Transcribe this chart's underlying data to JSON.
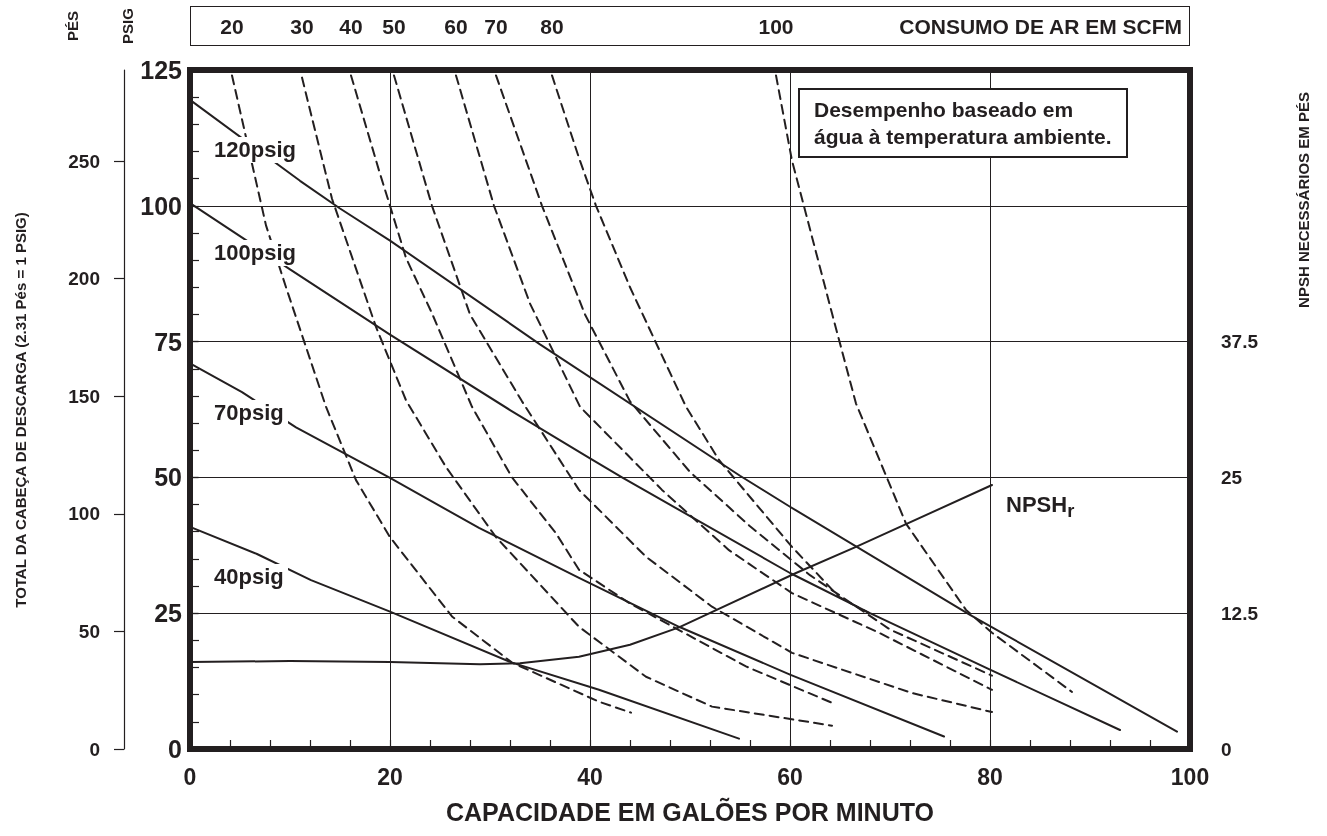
{
  "chart_data": {
    "type": "line",
    "xlabel": "CAPACIDADE EM GALÕES POR MINUTO",
    "ylabel": "PSIG",
    "y2label": "NPSH NECESSÁRIOS EM PÉS",
    "y3label": "PÉS",
    "annotations": [
      "TOTAL DA CABEÇA DE DESCARGA (2.31 Pés = 1 PSIG)",
      "CONSUMO DE AR EM SCFM",
      "Desempenho baseado em água à temperatura ambiente."
    ],
    "xlim": [
      0,
      100
    ],
    "xticks": [
      0,
      {
        "value": 4,
        "label": null
      },
      {
        "value": 8,
        "label": null
      },
      {
        "value": 12,
        "label": null
      },
      {
        "value": 16,
        "label": null
      },
      20,
      {
        "value": 24,
        "label": null
      },
      {
        "value": 28,
        "label": null
      },
      {
        "value": 32,
        "label": null
      },
      {
        "value": 36,
        "label": null
      },
      40,
      {
        "value": 44,
        "label": null
      },
      {
        "value": 48,
        "label": null
      },
      {
        "value": 52,
        "label": null
      },
      {
        "value": 56,
        "label": null
      },
      60,
      {
        "value": 64,
        "label": null
      },
      {
        "value": 68,
        "label": null
      },
      {
        "value": 72,
        "label": null
      },
      {
        "value": 76,
        "label": null
      },
      80,
      {
        "value": 84,
        "label": null
      },
      {
        "value": 88,
        "label": null
      },
      {
        "value": 92,
        "label": null
      },
      {
        "value": 96,
        "label": null
      },
      100
    ],
    "ylim": [
      0,
      125
    ],
    "yticks": [
      0,
      {
        "value": 5,
        "label": null
      },
      {
        "value": 10,
        "label": null
      },
      {
        "value": 15,
        "label": null
      },
      {
        "value": 20,
        "label": null
      },
      25,
      {
        "value": 30,
        "label": null
      },
      {
        "value": 35,
        "label": null
      },
      {
        "value": 40,
        "label": null
      },
      {
        "value": 45,
        "label": null
      },
      50,
      {
        "value": 55,
        "label": null
      },
      {
        "value": 60,
        "label": null
      },
      {
        "value": 65,
        "label": null
      },
      {
        "value": 70,
        "label": null
      },
      75,
      {
        "value": 80,
        "label": null
      },
      {
        "value": 85,
        "label": null
      },
      {
        "value": 90,
        "label": null
      },
      {
        "value": 95,
        "label": null
      },
      100,
      {
        "value": 105,
        "label": null
      },
      {
        "value": 110,
        "label": null
      },
      {
        "value": 115,
        "label": null
      },
      {
        "value": 120,
        "label": null
      },
      125
    ],
    "y2lim": [
      0,
      62.5
    ],
    "y2ticks": [
      0,
      12.5,
      25,
      37.5
    ],
    "y3lim": [
      0,
      288.75
    ],
    "y3ticks": [
      0,
      50,
      100,
      150,
      200,
      250
    ],
    "grid": true,
    "series": [
      {
        "name": "120psig",
        "color": "#231f20",
        "x": [
          0,
          11,
          15,
          20,
          35,
          55,
          60,
          78,
          98.7
        ],
        "values": [
          119.5,
          104.6,
          99.5,
          93.6,
          74.5,
          50.3,
          44.6,
          24.7,
          3.2
        ]
      },
      {
        "name": "100psig",
        "color": "#231f20",
        "x": [
          0,
          10,
          20,
          32,
          40,
          43.2,
          60,
          68,
          80,
          93
        ],
        "values": [
          100.5,
          88.3,
          76.3,
          62.4,
          53.5,
          50,
          32.4,
          25,
          14.6,
          3.5
        ]
      },
      {
        "name": "70psig",
        "color": "#231f20",
        "x": [
          0,
          5.2,
          10.6,
          20,
          28.9,
          38.9,
          48.9,
          60,
          75.4
        ],
        "values": [
          71,
          65.7,
          59.2,
          49.9,
          40.7,
          31.5,
          22.5,
          13.7,
          2.3
        ]
      },
      {
        "name": "40psig",
        "color": "#231f20",
        "x": [
          0,
          6.7,
          12.1,
          20,
          32.2,
          40.9,
          54.9
        ],
        "values": [
          40.9,
          35.9,
          31.1,
          25.3,
          15.9,
          10.9,
          1.9
        ]
      },
      {
        "name": "20",
        "color": "#231f20",
        "line_style": "dashed",
        "x": [
          4.2,
          7.6,
          9.6,
          13.6,
          16.6,
          20,
          26.2,
          32.2,
          40.9,
          44.1
        ],
        "values": [
          124,
          96.4,
          85,
          63,
          49.5,
          39,
          24.4,
          15.9,
          8.7,
          6.7
        ]
      },
      {
        "name": "30",
        "color": "#231f20",
        "line_style": "dashed",
        "x": [
          11.2,
          14.2,
          18.6,
          21.6,
          25.6,
          30.6,
          38.9,
          45.6,
          52.2,
          64.2
        ],
        "values": [
          123.6,
          101.3,
          77.7,
          64.2,
          51.9,
          39,
          22.5,
          13.3,
          7.8,
          4.3
        ]
      },
      {
        "name": "40",
        "color": "#231f20",
        "line_style": "dashed",
        "x": [
          16.1,
          18.9,
          20,
          21.6,
          24.2,
          28.2,
          32.2,
          36.6,
          38.9,
          43.9,
          48.9,
          55.6,
          64.2
        ],
        "values": [
          124,
          106.5,
          100,
          90.4,
          80.2,
          63,
          50,
          39.7,
          33,
          26.9,
          21.9,
          15.2,
          8.5
        ]
      },
      {
        "name": "50",
        "color": "#231f20",
        "line_style": "dashed",
        "x": [
          20.4,
          24.2,
          28,
          33.2,
          38.9,
          45.6,
          52.2,
          60.2,
          72.2,
          80.2
        ],
        "values": [
          124,
          100,
          80,
          64,
          47.7,
          35.4,
          26.2,
          17.7,
          10.3,
          6.8
        ]
      },
      {
        "name": "60",
        "color": "#231f20",
        "line_style": "dashed",
        "x": [
          26.6,
          30.4,
          34,
          39,
          47.2,
          53.9,
          60.2,
          68.9,
          80.2
        ],
        "values": [
          124,
          100,
          82,
          63,
          47.7,
          36.6,
          28.7,
          21.4,
          10.9
        ]
      },
      {
        "name": "70",
        "color": "#231f20",
        "line_style": "dashed",
        "x": [
          30.6,
          35.2,
          39.5,
          44,
          50,
          56,
          62,
          70,
          80.2
        ],
        "values": [
          124,
          100,
          80,
          64,
          51,
          41,
          32,
          22,
          13.5
        ]
      },
      {
        "name": "80",
        "color": "#231f20",
        "line_style": "dashed",
        "x": [
          36.2,
          38.9,
          40.6,
          44,
          49.6,
          52.9,
          60.2,
          64.9,
          67.9
        ],
        "values": [
          124,
          108.8,
          100,
          85,
          63,
          53.2,
          37.2,
          28,
          25
        ]
      },
      {
        "name": "100",
        "color": "#231f20",
        "line_style": "dashed",
        "x": [
          58.6,
          60.2,
          61.6,
          64.2,
          66.6,
          71.6,
          77.6,
          80.2,
          88.2
        ],
        "values": [
          124,
          108.3,
          98.5,
          80.2,
          63.6,
          41.5,
          25.6,
          21.4,
          10.5
        ]
      },
      {
        "name": "NPSH$_{r}$",
        "color": "#231f20",
        "axis": "y2",
        "x": [
          0,
          10,
          20,
          29,
          33,
          38.9,
          44,
          48.9,
          60.6,
          66.6,
          80.2
        ],
        "values": [
          8.0,
          8.1,
          8.0,
          7.8,
          7.9,
          8.5,
          9.6,
          11.2,
          16.2,
          18.6,
          24.3
        ]
      }
    ]
  }
}
